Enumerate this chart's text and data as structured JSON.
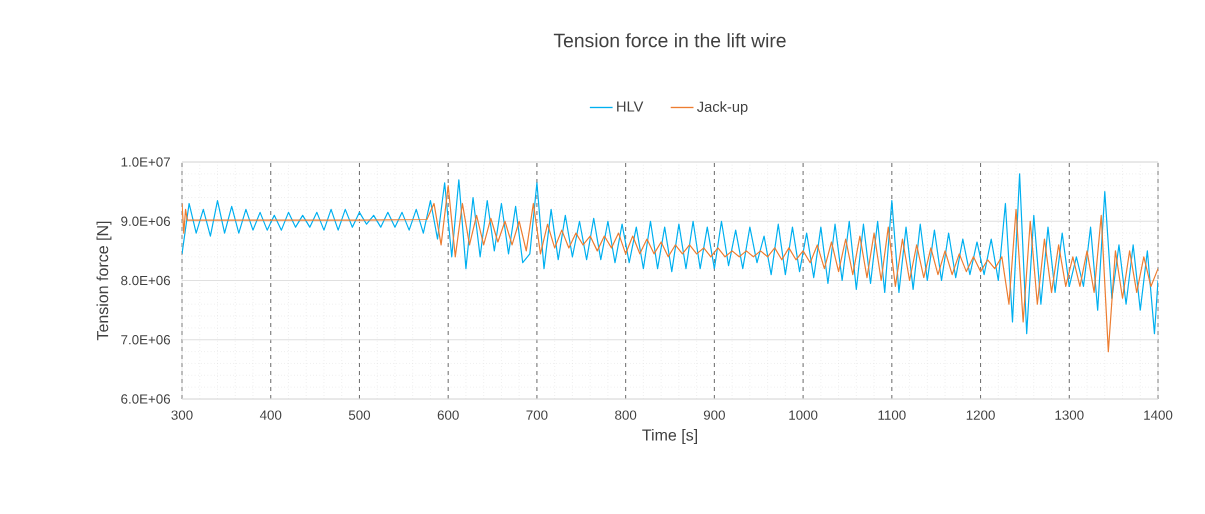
{
  "chart_data": {
    "type": "line",
    "title": "Tension force in the lift wire",
    "xlabel": "Time [s]",
    "ylabel": "Tension force [N]",
    "xlim": [
      300,
      1400
    ],
    "ylim": [
      6000000.0,
      10000000.0
    ],
    "xticks": [
      300,
      400,
      500,
      600,
      700,
      800,
      900,
      1000,
      1100,
      1200,
      1300,
      1400
    ],
    "yticks": [
      {
        "value": 6000000.0,
        "label": "6.0E+06"
      },
      {
        "value": 7000000.0,
        "label": "7.0E+06"
      },
      {
        "value": 8000000.0,
        "label": "8.0E+06"
      },
      {
        "value": 9000000.0,
        "label": "9.0E+06"
      },
      {
        "value": 10000000.0,
        "label": "1.0E+07"
      }
    ],
    "grid": true,
    "legend": "top",
    "series": [
      {
        "name": "HLV",
        "color": "#00b0f0",
        "x": [
          300,
          308,
          316,
          324,
          332,
          340,
          348,
          356,
          364,
          372,
          380,
          388,
          396,
          404,
          412,
          420,
          428,
          436,
          444,
          452,
          460,
          468,
          476,
          484,
          492,
          500,
          508,
          516,
          524,
          532,
          540,
          548,
          556,
          564,
          572,
          580,
          588,
          596,
          604,
          612,
          620,
          628,
          636,
          644,
          652,
          660,
          668,
          676,
          684,
          692,
          700,
          708,
          716,
          724,
          732,
          740,
          748,
          756,
          764,
          772,
          780,
          788,
          796,
          804,
          812,
          820,
          828,
          836,
          844,
          852,
          860,
          868,
          876,
          884,
          892,
          900,
          908,
          916,
          924,
          932,
          940,
          948,
          956,
          964,
          972,
          980,
          988,
          996,
          1004,
          1012,
          1020,
          1028,
          1036,
          1044,
          1052,
          1060,
          1068,
          1076,
          1084,
          1092,
          1100,
          1108,
          1116,
          1124,
          1132,
          1140,
          1148,
          1156,
          1164,
          1172,
          1180,
          1188,
          1196,
          1204,
          1212,
          1220,
          1228,
          1236,
          1244,
          1252,
          1260,
          1268,
          1276,
          1284,
          1292,
          1300,
          1308,
          1316,
          1324,
          1332,
          1340,
          1348,
          1356,
          1364,
          1372,
          1380,
          1388,
          1396,
          1400
        ],
        "values": [
          8450000.0,
          9300000.0,
          8800000.0,
          9200000.0,
          8750000.0,
          9350000.0,
          8800000.0,
          9250000.0,
          8800000.0,
          9200000.0,
          8850000.0,
          9150000.0,
          8850000.0,
          9100000.0,
          8850000.0,
          9150000.0,
          8900000.0,
          9100000.0,
          8900000.0,
          9150000.0,
          8850000.0,
          9200000.0,
          8850000.0,
          9200000.0,
          8900000.0,
          9150000.0,
          8950000.0,
          9100000.0,
          8900000.0,
          9150000.0,
          8900000.0,
          9150000.0,
          8850000.0,
          9200000.0,
          8800000.0,
          9350000.0,
          8700000.0,
          9650000.0,
          8400000.0,
          9700000.0,
          8200000.0,
          9400000.0,
          8400000.0,
          9350000.0,
          8500000.0,
          9300000.0,
          8450000.0,
          9250000.0,
          8300000.0,
          8450000.0,
          9650000.0,
          8200000.0,
          9200000.0,
          8350000.0,
          9100000.0,
          8400000.0,
          9000000.0,
          8350000.0,
          9050000.0,
          8350000.0,
          9000000.0,
          8300000.0,
          8950000.0,
          8300000.0,
          8900000.0,
          8200000.0,
          9000000.0,
          8200000.0,
          8900000.0,
          8150000.0,
          8950000.0,
          8200000.0,
          9000000.0,
          8200000.0,
          8900000.0,
          8200000.0,
          9000000.0,
          8250000.0,
          8850000.0,
          8200000.0,
          8900000.0,
          8300000.0,
          8750000.0,
          8100000.0,
          8950000.0,
          8100000.0,
          8900000.0,
          8150000.0,
          8800000.0,
          8050000.0,
          8900000.0,
          7950000.0,
          8950000.0,
          8000000.0,
          9000000.0,
          7850000.0,
          8950000.0,
          7950000.0,
          9000000.0,
          7800000.0,
          9350000.0,
          7800000.0,
          8900000.0,
          7850000.0,
          8950000.0,
          8000000.0,
          8850000.0,
          8000000.0,
          8800000.0,
          8050000.0,
          8700000.0,
          8100000.0,
          8650000.0,
          8100000.0,
          8700000.0,
          8000000.0,
          9300000.0,
          7300000.0,
          9800000.0,
          7100000.0,
          9100000.0,
          7600000.0,
          8900000.0,
          7800000.0,
          8800000.0,
          7900000.0,
          8400000.0,
          7900000.0,
          8900000.0,
          7500000.0,
          9500000.0,
          7700000.0,
          8600000.0,
          7600000.0,
          8600000.0,
          7500000.0,
          8500000.0,
          7100000.0,
          8000000.0
        ]
      },
      {
        "name": "Jack-up",
        "color": "#ed7d31",
        "x": [
          300,
          302,
          304,
          306,
          310,
          400,
          500,
          576,
          584,
          592,
          600,
          608,
          616,
          624,
          632,
          640,
          648,
          656,
          664,
          672,
          680,
          688,
          696,
          704,
          712,
          720,
          728,
          736,
          744,
          752,
          760,
          768,
          776,
          784,
          792,
          800,
          808,
          816,
          824,
          832,
          840,
          848,
          856,
          864,
          872,
          880,
          888,
          896,
          904,
          912,
          920,
          928,
          936,
          944,
          952,
          960,
          968,
          976,
          984,
          992,
          1000,
          1008,
          1016,
          1024,
          1032,
          1040,
          1048,
          1056,
          1064,
          1072,
          1080,
          1088,
          1096,
          1104,
          1112,
          1120,
          1128,
          1136,
          1144,
          1152,
          1160,
          1168,
          1176,
          1184,
          1192,
          1200,
          1208,
          1216,
          1224,
          1232,
          1240,
          1248,
          1256,
          1264,
          1272,
          1280,
          1288,
          1296,
          1304,
          1312,
          1320,
          1328,
          1336,
          1344,
          1352,
          1360,
          1368,
          1376,
          1384,
          1392,
          1400
        ],
        "values": [
          9300000.0,
          8800000.0,
          9200000.0,
          9020000.0,
          9020000.0,
          9020000.0,
          9020000.0,
          9030000.0,
          9300000.0,
          8600000.0,
          9600000.0,
          8400000.0,
          9300000.0,
          8600000.0,
          9100000.0,
          8600000.0,
          9050000.0,
          8650000.0,
          9000000.0,
          8600000.0,
          9000000.0,
          8500000.0,
          9300000.0,
          8450000.0,
          8950000.0,
          8550000.0,
          8850000.0,
          8550000.0,
          8800000.0,
          8600000.0,
          8750000.0,
          8500000.0,
          8750000.0,
          8550000.0,
          8800000.0,
          8450000.0,
          8750000.0,
          8450000.0,
          8700000.0,
          8450000.0,
          8650000.0,
          8400000.0,
          8600000.0,
          8450000.0,
          8600000.0,
          8450000.0,
          8550000.0,
          8400000.0,
          8550000.0,
          8400000.0,
          8500000.0,
          8400000.0,
          8500000.0,
          8400000.0,
          8500000.0,
          8400000.0,
          8550000.0,
          8350000.0,
          8550000.0,
          8350000.0,
          8500000.0,
          8300000.0,
          8600000.0,
          8200000.0,
          8650000.0,
          8150000.0,
          8700000.0,
          8100000.0,
          8750000.0,
          8050000.0,
          8800000.0,
          8000000.0,
          8900000.0,
          7900000.0,
          8700000.0,
          8000000.0,
          8600000.0,
          8050000.0,
          8550000.0,
          8100000.0,
          8500000.0,
          8100000.0,
          8450000.0,
          8150000.0,
          8400000.0,
          8150000.0,
          8350000.0,
          8200000.0,
          8400000.0,
          7600000.0,
          9200000.0,
          7300000.0,
          9000000.0,
          7600000.0,
          8700000.0,
          7800000.0,
          8600000.0,
          7900000.0,
          8400000.0,
          7900000.0,
          8500000.0,
          7800000.0,
          9100000.0,
          6800000.0,
          8500000.0,
          7700000.0,
          8500000.0,
          7800000.0,
          8400000.0,
          7900000.0,
          8200000.0
        ]
      }
    ]
  }
}
